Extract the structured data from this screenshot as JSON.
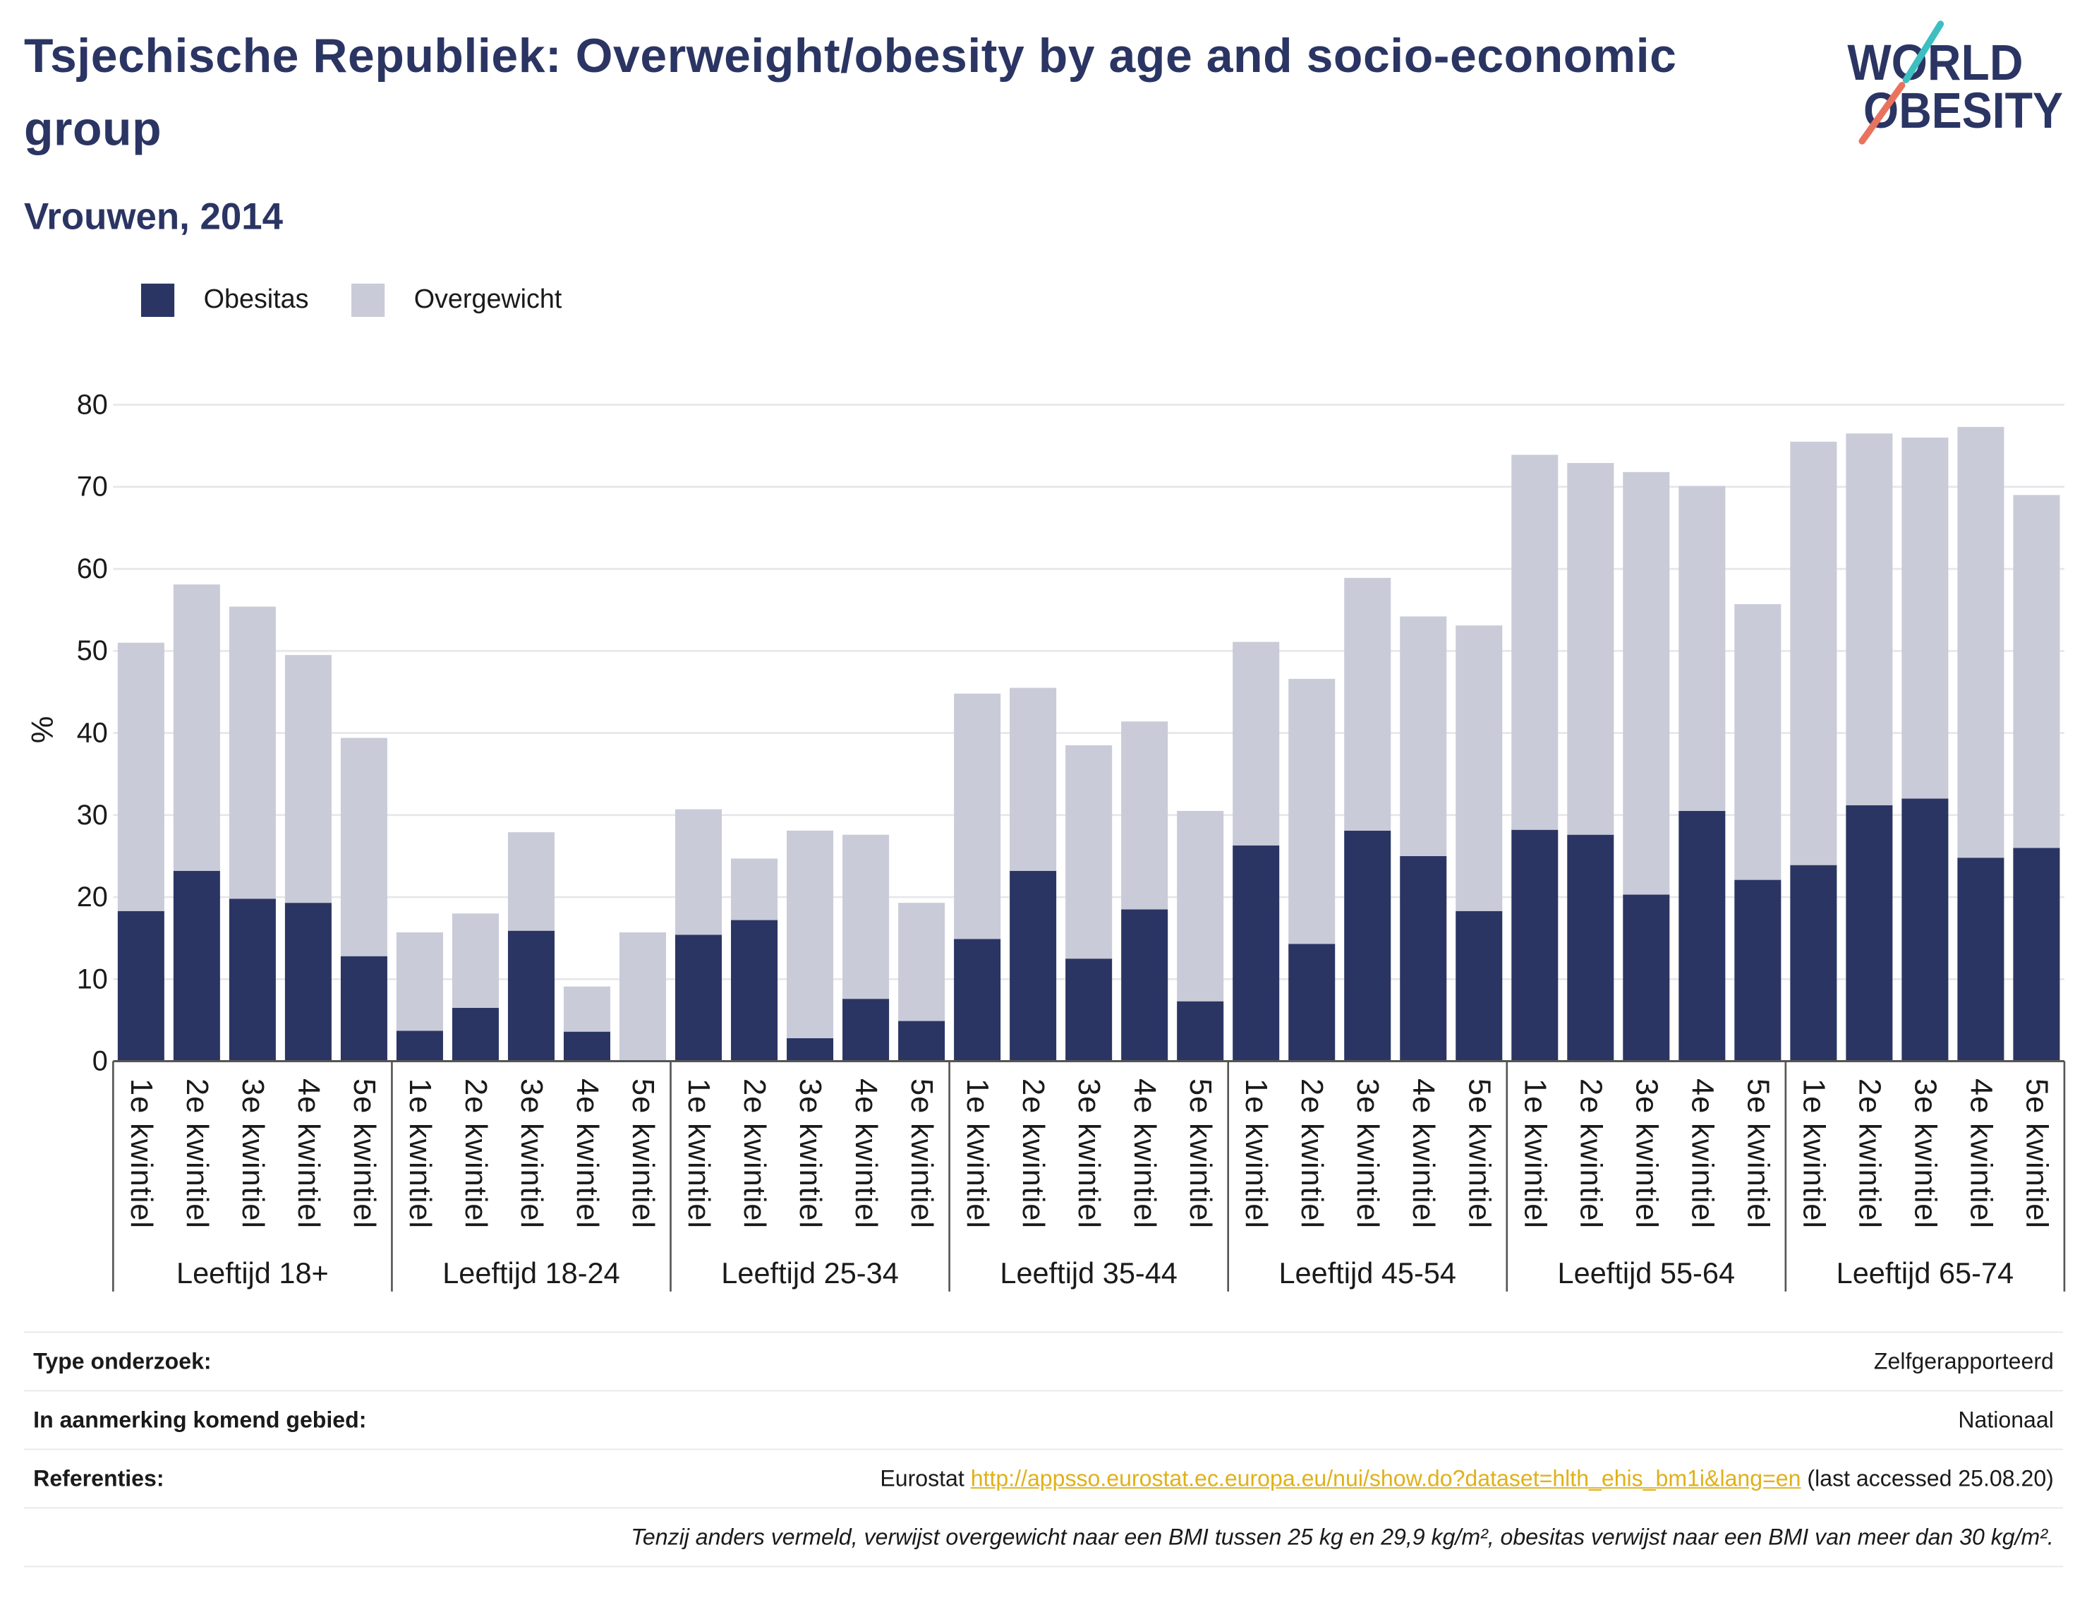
{
  "logo": {
    "line1": "WORLD",
    "line2": "OBESITY",
    "navy": "#2b3563",
    "teal": "#3dbfc1",
    "coral": "#e9735e"
  },
  "chart_data": {
    "type": "bar",
    "stacked": true,
    "title": "Tsjechische Republiek: Overweight/obesity by age and socio-economic group",
    "subtitle": "Vrouwen, 2014",
    "ylabel": "%",
    "ylim": [
      0,
      80
    ],
    "yticks": [
      0,
      10,
      20,
      30,
      40,
      50,
      60,
      70,
      80
    ],
    "grid": true,
    "legend_position": "top-left",
    "categories": [
      "1e kwintiel",
      "2e kwintiel",
      "3e kwintiel",
      "4e kwintiel",
      "5e kwintiel"
    ],
    "group_labels": [
      "Leeftijd 18+",
      "Leeftijd 18-24",
      "Leeftijd 25-34",
      "Leeftijd 35-44",
      "Leeftijd 45-54",
      "Leeftijd 55-64",
      "Leeftijd 65-74"
    ],
    "series": [
      {
        "name": "Obesitas",
        "color": "#2b3563",
        "values": [
          [
            18.3,
            23.2,
            19.8,
            19.3,
            12.8
          ],
          [
            3.7,
            6.5,
            15.9,
            3.6,
            0
          ],
          [
            15.4,
            17.2,
            2.8,
            7.6,
            4.9
          ],
          [
            14.9,
            23.2,
            12.5,
            18.5,
            7.3
          ],
          [
            26.3,
            14.3,
            28.1,
            25.0,
            18.3
          ],
          [
            28.2,
            27.6,
            20.3,
            30.5,
            22.1
          ],
          [
            23.9,
            31.2,
            32.0,
            24.8,
            26.0
          ]
        ]
      },
      {
        "name": "Overgewicht",
        "color": "#c9cbd8",
        "values": [
          [
            32.7,
            34.9,
            35.6,
            30.2,
            26.6
          ],
          [
            12.0,
            11.5,
            12.0,
            5.5,
            15.7
          ],
          [
            15.3,
            7.5,
            25.3,
            20.0,
            14.4
          ],
          [
            29.9,
            22.3,
            26.0,
            22.9,
            23.2
          ],
          [
            24.8,
            32.3,
            30.8,
            29.2,
            34.8
          ],
          [
            45.7,
            45.3,
            51.5,
            39.6,
            33.6
          ],
          [
            51.6,
            45.3,
            44.0,
            52.5,
            43.0
          ]
        ]
      }
    ]
  },
  "info": {
    "rows": [
      {
        "label": "Type onderzoek:",
        "value": "Zelfgerapporteerd"
      },
      {
        "label": "In aanmerking komend gebied:",
        "value": "Nationaal"
      }
    ],
    "reference": {
      "label": "Referenties:",
      "source": "Eurostat",
      "link": "http://appsso.eurostat.ec.europa.eu/nui/show.do?dataset=hlth_ehis_bm1i&lang=en",
      "suffix": "(last accessed 25.08.20)"
    },
    "note": "Tenzij anders vermeld, verwijst overgewicht naar een BMI tussen 25 kg en 29,9 kg/m², obesitas verwijst naar een BMI van meer dan 30 kg/m²."
  }
}
